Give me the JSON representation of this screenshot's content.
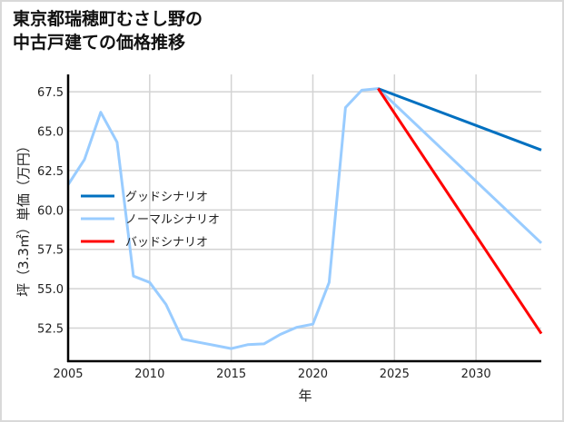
{
  "title": {
    "line1": "東京都瑞穂町むさし野の",
    "line2": "中古戸建ての価格推移"
  },
  "chart_data": {
    "type": "line",
    "title": "東京都瑞穂町むさし野の中古戸建ての価格推移",
    "xlabel": "年",
    "ylabel": "坪（3.3㎡）単価（万円）",
    "xlim": [
      2005,
      2034
    ],
    "ylim": [
      50.4,
      68.6
    ],
    "x_ticks": [
      2005,
      2010,
      2015,
      2020,
      2025,
      2030
    ],
    "x_tick_labels": [
      "2005",
      "2010",
      "2015",
      "2020",
      "2025",
      "2030"
    ],
    "y_ticks": [
      52.5,
      55.0,
      57.5,
      60.0,
      62.5,
      65.0,
      67.5
    ],
    "y_tick_labels": [
      "52.5",
      "55.0",
      "57.5",
      "60.0",
      "62.5",
      "65.0",
      "67.5"
    ],
    "grid": true,
    "legend_position": "center-left",
    "series": [
      {
        "name": "グッドシナリオ",
        "color": "#0070c0",
        "x": [
          2024,
          2034
        ],
        "values": [
          67.7,
          63.8
        ]
      },
      {
        "name": "ノーマルシナリオ",
        "color": "#99ccff",
        "x": [
          2005,
          2006,
          2007,
          2008,
          2009,
          2010,
          2011,
          2012,
          2013,
          2014,
          2015,
          2016,
          2017,
          2018,
          2019,
          2020,
          2021,
          2022,
          2023,
          2024,
          2034
        ],
        "values": [
          61.6,
          63.2,
          66.2,
          64.3,
          55.8,
          55.4,
          54.0,
          51.8,
          51.6,
          51.4,
          51.2,
          51.45,
          51.5,
          52.1,
          52.55,
          52.75,
          55.4,
          66.5,
          67.6,
          67.7,
          57.9
        ]
      },
      {
        "name": "バッドシナリオ",
        "color": "#ff0000",
        "x": [
          2024,
          2034
        ],
        "values": [
          67.7,
          52.15
        ]
      }
    ]
  },
  "legend": {
    "items": [
      {
        "label": "グッドシナリオ",
        "color": "#0070c0"
      },
      {
        "label": "ノーマルシナリオ",
        "color": "#99ccff"
      },
      {
        "label": "バッドシナリオ",
        "color": "#ff0000"
      }
    ]
  },
  "axes": {
    "xlabel": "年",
    "ylabel": "坪（3.3㎡）単価（万円）"
  }
}
